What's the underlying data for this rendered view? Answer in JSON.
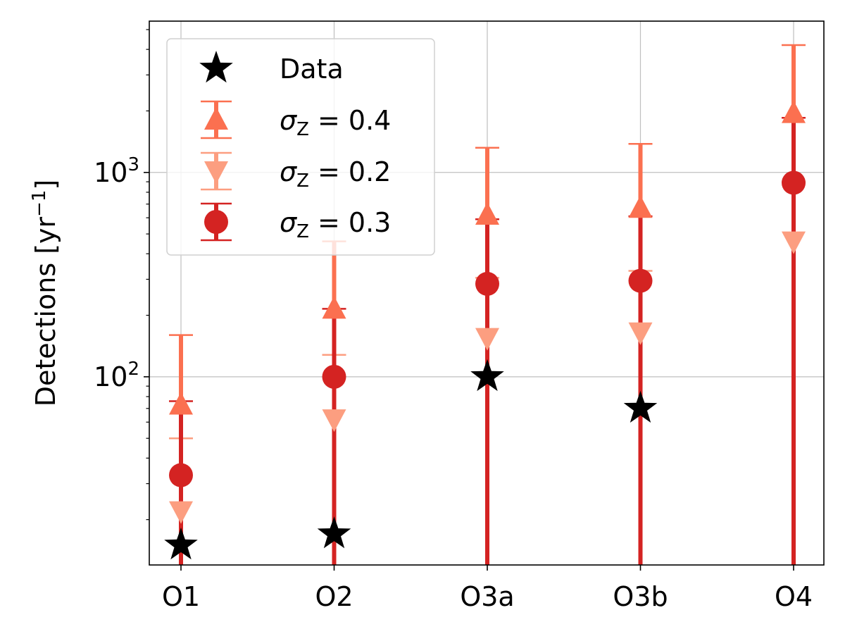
{
  "chart_data": {
    "type": "scatter",
    "title": "",
    "xlabel": "",
    "ylabel": "Detections [yr⁻¹]",
    "ylabel_parts": {
      "base": "Detections [yr",
      "sup": "−1",
      "close": "]"
    },
    "yscale": "log",
    "ylim": [
      12,
      5500
    ],
    "grid": true,
    "legend_position": "upper-left",
    "categories": [
      "O1",
      "O2",
      "O3a",
      "O3b",
      "O4"
    ],
    "y_ticks": [
      {
        "value": 100,
        "base": "10",
        "exp": "2"
      },
      {
        "value": 1000,
        "base": "10",
        "exp": "3"
      }
    ],
    "series": [
      {
        "name": "Data",
        "marker": "star",
        "color": "#000000",
        "values": [
          15,
          17,
          100,
          70,
          null
        ]
      },
      {
        "name": "σZ = 0.4",
        "legend_sigma": "σ",
        "legend_sub": "Z",
        "legend_value": " = 0.4",
        "marker": "triangle-up",
        "color": "#fb7050",
        "values": [
          73,
          215,
          620,
          670,
          1950
        ],
        "err_low": [
          0,
          0,
          0,
          0,
          0
        ],
        "err_high": [
          160,
          460,
          1320,
          1380,
          4200
        ]
      },
      {
        "name": "σZ = 0.2",
        "legend_sigma": "σ",
        "legend_sub": "Z",
        "legend_value": " = 0.2",
        "marker": "triangle-down",
        "color": "#fc9e80",
        "values": [
          22,
          62,
          155,
          165,
          460
        ],
        "err_low": [
          0,
          0,
          0,
          0,
          0
        ],
        "err_high": [
          50,
          128,
          305,
          330,
          900
        ]
      },
      {
        "name": "σZ = 0.3",
        "legend_sigma": "σ",
        "legend_sub": "Z",
        "legend_value": " = 0.3",
        "marker": "circle",
        "color": "#d42322",
        "values": [
          33,
          100,
          285,
          295,
          890
        ],
        "err_low": [
          0,
          0,
          0,
          0,
          0
        ],
        "err_high": [
          76,
          215,
          590,
          610,
          1850
        ]
      }
    ]
  }
}
